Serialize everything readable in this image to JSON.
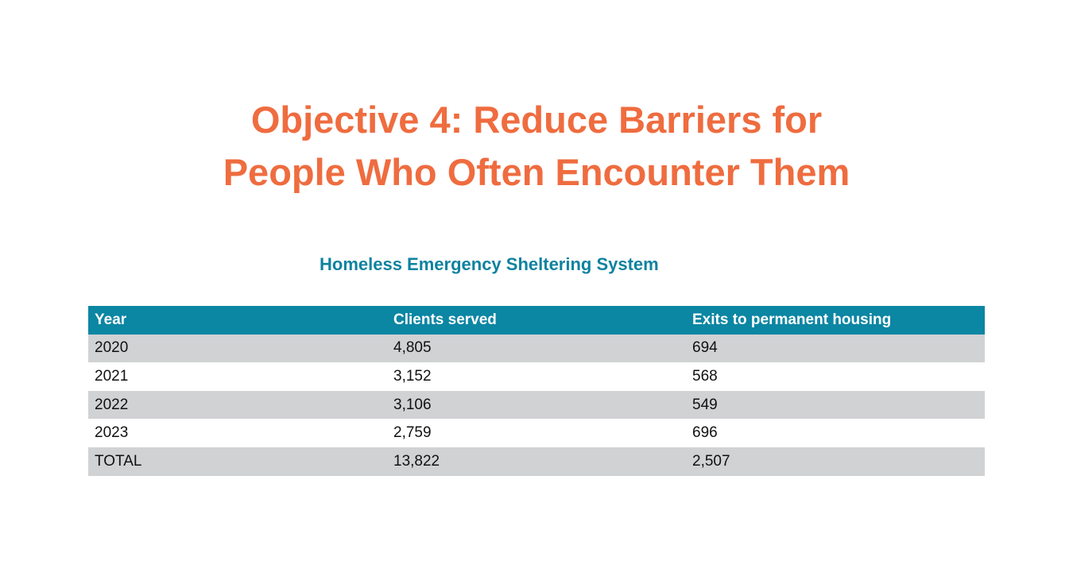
{
  "title": {
    "line1": "Objective 4: Reduce Barriers for",
    "line2": "People Who Often Encounter Them"
  },
  "subtitle": "Homeless Emergency Sheltering System",
  "table": {
    "headers": [
      "Year",
      "Clients served",
      "Exits to permanent housing"
    ],
    "rows": [
      [
        "2020",
        "4,805",
        "694"
      ],
      [
        "2021",
        "3,152",
        "568"
      ],
      [
        "2022",
        "3,106",
        "549"
      ],
      [
        "2023",
        "2,759",
        "696"
      ],
      [
        "TOTAL",
        "13,822",
        "2,507"
      ]
    ]
  },
  "colors": {
    "title": "#EF6C3F",
    "subtitle": "#0E82A0",
    "header_bg": "#0B86A3",
    "shaded_row_bg": "#D1D2D4"
  }
}
